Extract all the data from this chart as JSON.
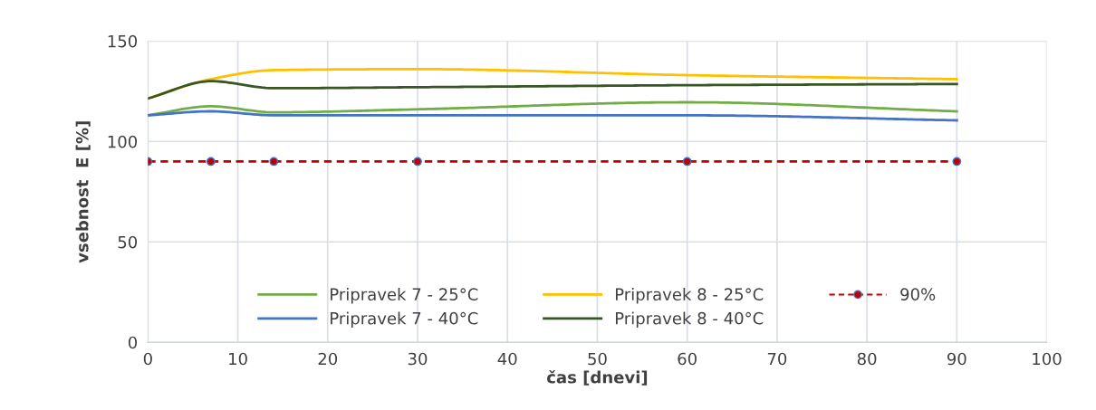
{
  "chart_data": {
    "type": "line",
    "xlabel": "čas [dnevi]",
    "ylabel": "vsebnost  E [%]",
    "x": [
      0,
      7,
      14,
      30,
      60,
      90
    ],
    "xlim": [
      0,
      100
    ],
    "xticks": [
      0,
      10,
      20,
      30,
      40,
      50,
      60,
      70,
      80,
      90,
      100
    ],
    "ylim": [
      0,
      150
    ],
    "yticks": [
      0,
      50,
      100,
      150
    ],
    "grid": true,
    "legend": "bottom",
    "marker": "none",
    "line_style": "solid",
    "series": [
      {
        "name": "Pripravek 7 - 25°C",
        "color": "#70ad47",
        "values": [
          113,
          117.5,
          114.5,
          116,
          119.5,
          115
        ]
      },
      {
        "name": "Pripravek 7 - 40°C",
        "color": "#4472c4",
        "values": [
          113,
          115,
          113,
          113,
          113,
          110.5
        ]
      },
      {
        "name": "Pripravek 8 - 25°C",
        "color": "#ffc000",
        "values": [
          121.4,
          131,
          135.5,
          136,
          133,
          131
        ]
      },
      {
        "name": "Pripravek 8 - 40°C",
        "color": "#375623",
        "values": [
          121.4,
          130,
          126.5,
          127,
          128,
          128.6
        ]
      },
      {
        "name": "90%",
        "color": "#c00000",
        "values": [
          90,
          90,
          90,
          90,
          90,
          90
        ],
        "marker": "circle",
        "line_style": "dashed"
      }
    ]
  }
}
